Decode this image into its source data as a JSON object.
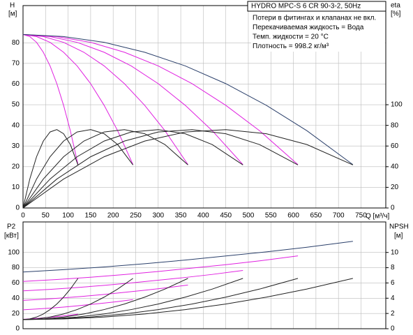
{
  "chart_data": [
    {
      "type": "line",
      "title": "HYDRO MPC-S 6 CR 90-3-2, 50Hz",
      "annotations": [
        "Потери в фитингах и клапанах не вкл.",
        "Перекачиваемая жидкость = Вода",
        "Темп. жидкости = 20 °C",
        "Плотность = 998.2 кг/м³"
      ],
      "y_label": "H",
      "y_unit": "[м]",
      "y2_label": "eta",
      "y2_unit": "[%]",
      "x_label": "Q [м³/ч]",
      "xlim": [
        0,
        805
      ],
      "xticks": [
        0,
        50,
        100,
        150,
        200,
        250,
        300,
        350,
        400,
        450,
        500,
        550,
        600,
        650,
        700,
        750
      ],
      "ylim": [
        0,
        98
      ],
      "yticks": [
        0,
        10,
        20,
        30,
        40,
        50,
        60,
        70,
        80
      ],
      "y2lim": [
        0,
        196
      ],
      "y2ticks": [
        0,
        20,
        40,
        60,
        80,
        100
      ],
      "grid": true,
      "series": [
        {
          "color": "#e020e0",
          "x": [
            0,
            15,
            30,
            45,
            60,
            75,
            90,
            105,
            122
          ],
          "values": [
            84,
            83.0,
            80.2,
            75.4,
            68.8,
            60.2,
            49.7,
            37.4,
            21.0
          ]
        },
        {
          "color": "#e020e0",
          "x": [
            0,
            30,
            60,
            90,
            120,
            150,
            180,
            210,
            244
          ],
          "values": [
            84,
            83.0,
            80.2,
            75.4,
            68.8,
            60.2,
            49.7,
            37.4,
            21.0
          ]
        },
        {
          "color": "#e020e0",
          "x": [
            0,
            45,
            90,
            135,
            180,
            225,
            270,
            315,
            366
          ],
          "values": [
            84,
            83.0,
            80.2,
            75.4,
            68.8,
            60.2,
            49.7,
            37.4,
            21.0
          ]
        },
        {
          "color": "#e020e0",
          "x": [
            0,
            60,
            120,
            180,
            240,
            300,
            360,
            420,
            488
          ],
          "values": [
            84,
            83.0,
            80.2,
            75.4,
            68.8,
            60.2,
            49.7,
            37.4,
            21.0
          ]
        },
        {
          "color": "#e020e0",
          "x": [
            0,
            75,
            150,
            225,
            300,
            375,
            450,
            525,
            610
          ],
          "values": [
            84,
            83.0,
            80.2,
            75.4,
            68.8,
            60.2,
            49.7,
            37.4,
            21.0
          ]
        },
        {
          "color": "#2a3f6a",
          "x": [
            0,
            90,
            180,
            270,
            360,
            450,
            540,
            630,
            732
          ],
          "values": [
            84,
            83.0,
            80.2,
            75.4,
            68.8,
            60.2,
            49.7,
            37.4,
            21.0
          ]
        },
        {
          "color": "#222222",
          "axis": "y2",
          "x": [
            0,
            15,
            30,
            45,
            60,
            75,
            90,
            105,
            122
          ],
          "values": [
            0,
            28.0,
            49.6,
            64.8,
            73.6,
            75.9,
            71.9,
            61.4,
            41.7
          ]
        },
        {
          "color": "#222222",
          "axis": "y2",
          "x": [
            0,
            30,
            60,
            90,
            120,
            150,
            180,
            210,
            244
          ],
          "values": [
            0,
            28.0,
            49.6,
            64.8,
            73.6,
            75.9,
            71.9,
            61.4,
            41.7
          ]
        },
        {
          "color": "#222222",
          "axis": "y2",
          "x": [
            0,
            45,
            90,
            135,
            180,
            225,
            270,
            315,
            366
          ],
          "values": [
            0,
            28.0,
            49.6,
            64.8,
            73.6,
            75.9,
            71.9,
            61.4,
            41.7
          ]
        },
        {
          "color": "#222222",
          "axis": "y2",
          "x": [
            0,
            60,
            120,
            180,
            240,
            300,
            360,
            420,
            488
          ],
          "values": [
            0,
            28.0,
            49.6,
            64.8,
            73.6,
            75.9,
            71.9,
            61.4,
            41.7
          ]
        },
        {
          "color": "#222222",
          "axis": "y2",
          "x": [
            0,
            75,
            150,
            225,
            300,
            375,
            450,
            525,
            610
          ],
          "values": [
            0,
            28.0,
            49.6,
            64.8,
            73.6,
            75.9,
            71.9,
            61.4,
            41.7
          ]
        },
        {
          "color": "#222222",
          "axis": "y2",
          "x": [
            0,
            90,
            180,
            270,
            360,
            450,
            540,
            630,
            732
          ],
          "values": [
            0,
            28.0,
            49.6,
            64.8,
            73.6,
            75.9,
            71.9,
            61.4,
            41.7
          ]
        }
      ]
    },
    {
      "type": "line",
      "y_label": "P2",
      "y_unit": "[кВт]",
      "y2_label": "NPSH",
      "y2_unit": "[м]",
      "xlim": [
        0,
        805
      ],
      "xticks": [
        0,
        50,
        100,
        150,
        200,
        250,
        300,
        350,
        400,
        450,
        500,
        550,
        600,
        650,
        700,
        750
      ],
      "ylim": [
        0,
        140
      ],
      "yticks": [
        0,
        20,
        40,
        60,
        80,
        100
      ],
      "y2lim": [
        0,
        14
      ],
      "y2ticks": [
        0,
        2,
        4,
        6,
        8,
        10
      ],
      "grid": true,
      "series": [
        {
          "color": "#e020e0",
          "x": [
            0,
            15,
            30,
            45,
            60,
            75,
            90,
            105,
            122
          ],
          "values": [
            12.4,
            12.9,
            13.5,
            14.2,
            15.0,
            15.9,
            16.8,
            17.8,
            19.1
          ]
        },
        {
          "color": "#e020e0",
          "x": [
            0,
            30,
            60,
            90,
            120,
            150,
            180,
            210,
            244
          ],
          "values": [
            24.8,
            25.8,
            27,
            28.4,
            30,
            31.8,
            33.6,
            35.6,
            38.2
          ]
        },
        {
          "color": "#e020e0",
          "x": [
            0,
            45,
            90,
            135,
            180,
            225,
            270,
            315,
            366
          ],
          "values": [
            37.2,
            38.7,
            40.5,
            42.6,
            45,
            47.7,
            50.4,
            53.4,
            57.3
          ]
        },
        {
          "color": "#e020e0",
          "x": [
            0,
            60,
            120,
            180,
            240,
            300,
            360,
            420,
            488
          ],
          "values": [
            49.6,
            51.6,
            54,
            56.8,
            60,
            63.6,
            67.2,
            71.2,
            76.4
          ]
        },
        {
          "color": "#e020e0",
          "x": [
            0,
            75,
            150,
            225,
            300,
            375,
            450,
            525,
            610
          ],
          "values": [
            62,
            64.5,
            67.5,
            71,
            75,
            79.5,
            84,
            89,
            95.5
          ]
        },
        {
          "color": "#2a3f6a",
          "x": [
            0,
            90,
            180,
            270,
            360,
            450,
            540,
            630,
            732
          ],
          "values": [
            74.4,
            77.4,
            81,
            85.2,
            90,
            95.4,
            100.8,
            106.8,
            114.6
          ]
        },
        {
          "color": "#222222",
          "axis": "y2",
          "x": [
            0,
            15,
            30,
            45,
            60,
            75,
            90,
            105,
            122
          ],
          "values": [
            1.2,
            1.28,
            1.53,
            1.93,
            2.51,
            3.24,
            4.14,
            5.2,
            6.6
          ]
        },
        {
          "color": "#222222",
          "axis": "y2",
          "x": [
            0,
            30,
            60,
            90,
            120,
            150,
            180,
            210,
            244
          ],
          "values": [
            1.2,
            1.28,
            1.53,
            1.93,
            2.51,
            3.24,
            4.14,
            5.2,
            6.6
          ]
        },
        {
          "color": "#222222",
          "axis": "y2",
          "x": [
            0,
            45,
            90,
            135,
            180,
            225,
            270,
            315,
            366
          ],
          "values": [
            1.2,
            1.28,
            1.53,
            1.93,
            2.51,
            3.24,
            4.14,
            5.2,
            6.6
          ]
        },
        {
          "color": "#222222",
          "axis": "y2",
          "x": [
            0,
            60,
            120,
            180,
            240,
            300,
            360,
            420,
            488
          ],
          "values": [
            1.2,
            1.28,
            1.53,
            1.93,
            2.51,
            3.24,
            4.14,
            5.2,
            6.6
          ]
        },
        {
          "color": "#222222",
          "axis": "y2",
          "x": [
            0,
            75,
            150,
            225,
            300,
            375,
            450,
            525,
            610
          ],
          "values": [
            1.2,
            1.28,
            1.53,
            1.93,
            2.51,
            3.24,
            4.14,
            5.2,
            6.6
          ]
        },
        {
          "color": "#222222",
          "axis": "y2",
          "x": [
            0,
            90,
            180,
            270,
            360,
            450,
            540,
            630,
            732
          ],
          "values": [
            1.2,
            1.28,
            1.53,
            1.93,
            2.51,
            3.24,
            4.14,
            5.2,
            6.6
          ]
        }
      ]
    }
  ]
}
